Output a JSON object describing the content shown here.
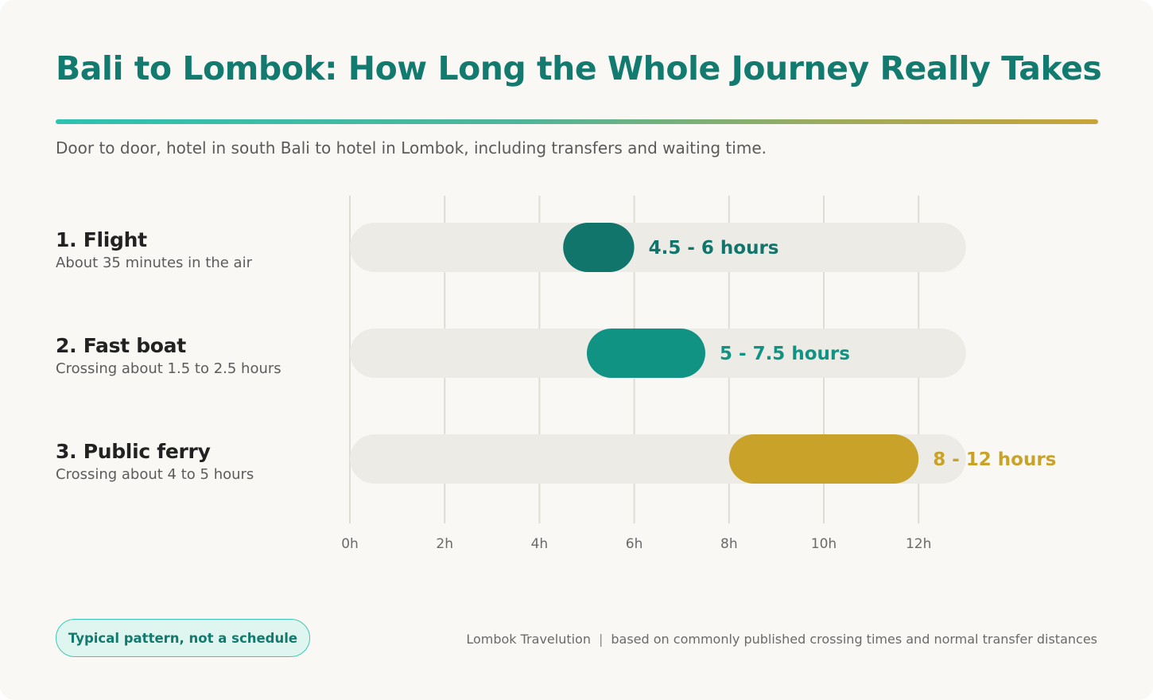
{
  "title": "Bali to Lombok: How Long the Whole Journey Really Takes",
  "subtitle": "Door to door, hotel in south Bali to hotel in Lombok, including transfers and waiting time.",
  "rows": [
    {
      "label": "1. Flight",
      "note": "About 35 minutes in the air"
    },
    {
      "label": "2. Fast boat",
      "note": "Crossing about 1.5 to 2.5 hours"
    },
    {
      "label": "3. Public ferry",
      "note": "Crossing about 4 to 5 hours"
    }
  ],
  "badge": "Typical pattern, not a schedule",
  "footer": {
    "brand": "Lombok Travelution",
    "separator": "|",
    "source": "based on commonly published crossing times and normal transfer distances"
  },
  "chart_data": {
    "type": "bar",
    "orientation": "horizontal-range",
    "categories": [
      "1. Flight",
      "2. Fast boat",
      "3. Public ferry"
    ],
    "ranges": [
      {
        "start": 4.5,
        "end": 6,
        "label": "4.5 - 6 hours",
        "color": "#11756c"
      },
      {
        "start": 5,
        "end": 7.5,
        "label": "5 - 7.5 hours",
        "color": "#119384"
      },
      {
        "start": 8,
        "end": 12,
        "label": "8 - 12 hours",
        "color": "#c9a329"
      }
    ],
    "xlim": [
      0,
      13
    ],
    "xticks": [
      0,
      2,
      4,
      6,
      8,
      10,
      12
    ],
    "xtick_labels": [
      "0h",
      "2h",
      "4h",
      "6h",
      "8h",
      "10h",
      "12h"
    ],
    "track_color": "#ecebe6",
    "grid_color": "#dedcd4",
    "grid": true
  }
}
